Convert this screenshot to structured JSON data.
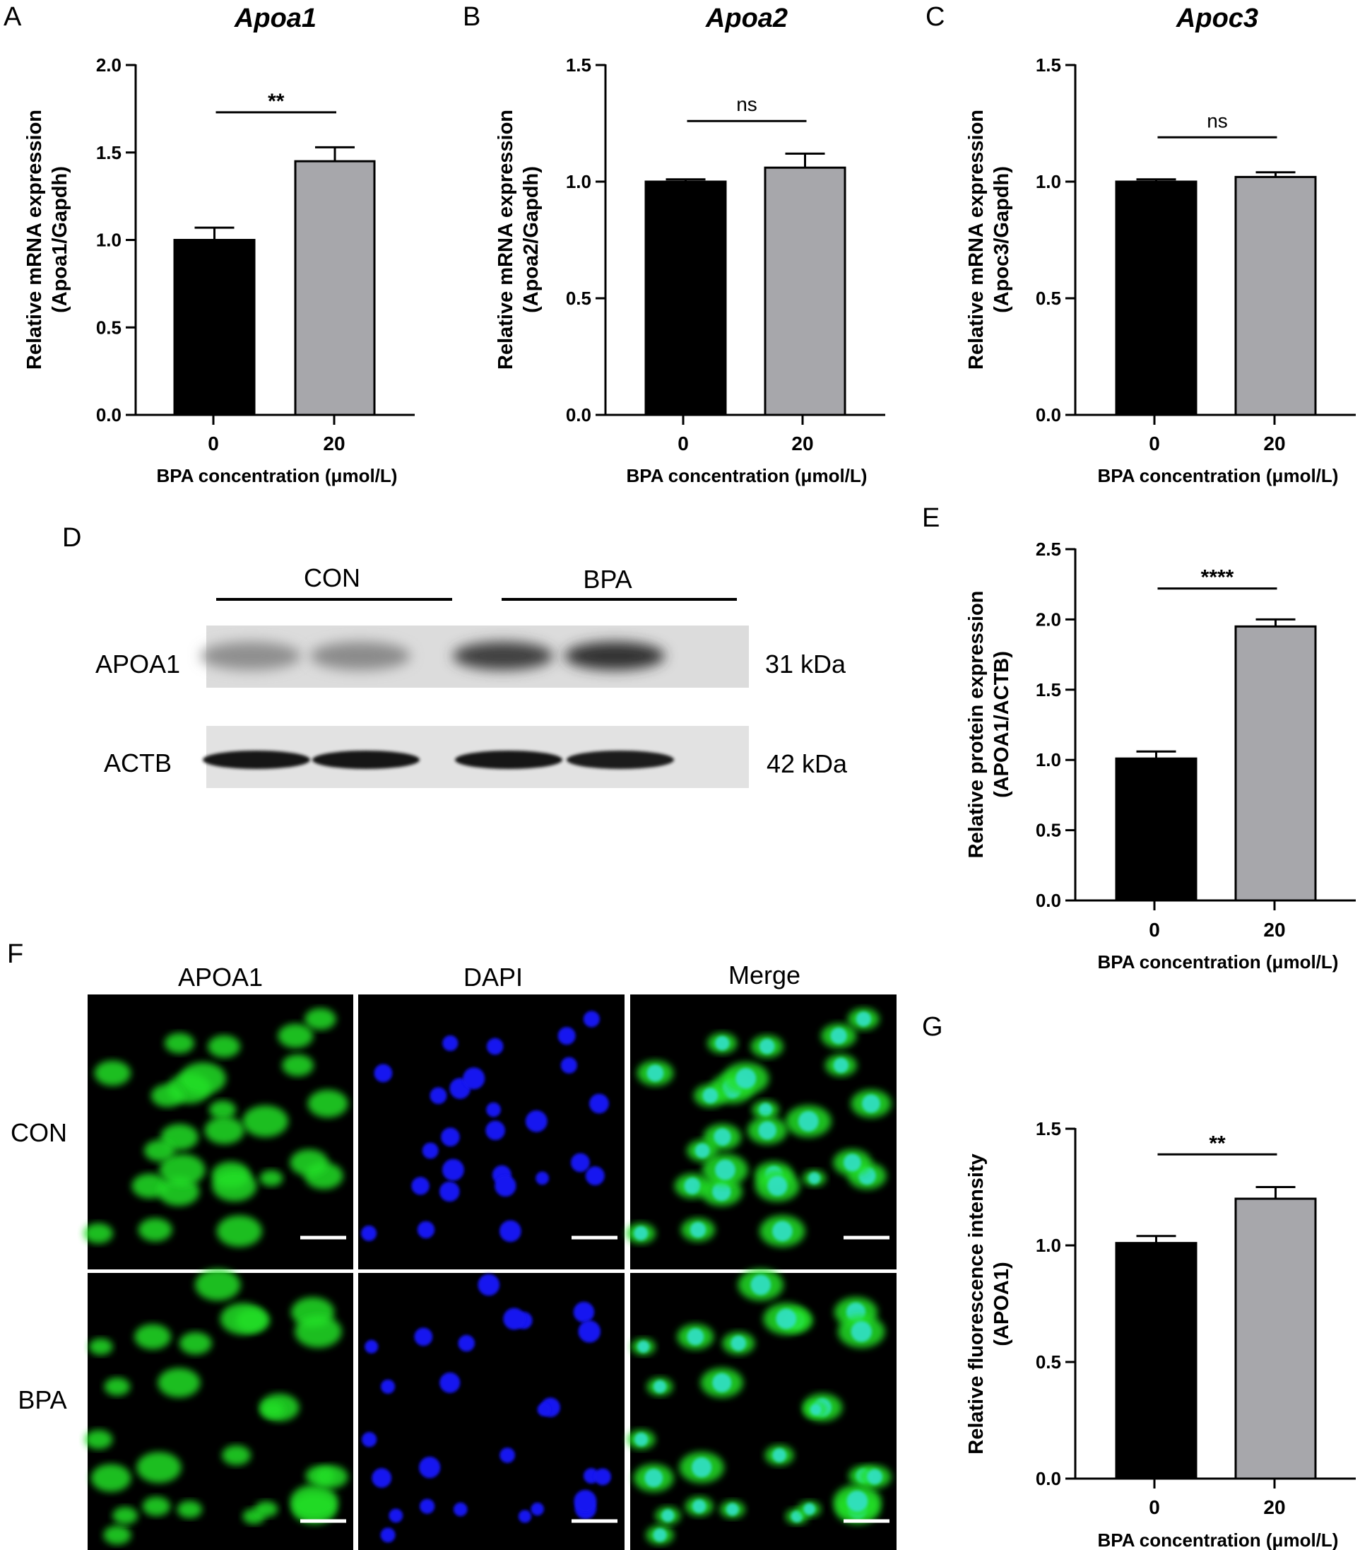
{
  "panel_letters": {
    "A": "A",
    "B": "B",
    "C": "C",
    "D": "D",
    "E": "E",
    "F": "F",
    "G": "G"
  },
  "colors": {
    "control_bar": "#000000",
    "bpa_bar": "#a7a7ab",
    "dapi": "#1414f0",
    "apoa1": "#22e028",
    "merge": "#33e0c8"
  },
  "chart_data": [
    {
      "panel": "A",
      "type": "bar",
      "title": "Apoa1",
      "ylabel_line1": "Relative mRNA expression",
      "ylabel_line2": "(Apoa1/Gapdh)",
      "xlabel": "BPA concentration (μmol/L)",
      "categories": [
        "0",
        "20"
      ],
      "values": [
        1.0,
        1.45
      ],
      "errors": [
        0.07,
        0.08
      ],
      "ylim": [
        0,
        2.0
      ],
      "yticks": [
        "0.0",
        "0.5",
        "1.0",
        "1.5",
        "2.0"
      ],
      "ytick_values": [
        0,
        0.5,
        1.0,
        1.5,
        2.0
      ],
      "significance": "**",
      "sig_level": 1.73
    },
    {
      "panel": "B",
      "type": "bar",
      "title": "Apoa2",
      "ylabel_line1": "Relative mRNA expression",
      "ylabel_line2": "(Apoa2/Gapdh)",
      "xlabel": "BPA concentration (μmol/L)",
      "categories": [
        "0",
        "20"
      ],
      "values": [
        1.0,
        1.06
      ],
      "errors": [
        0.01,
        0.06
      ],
      "ylim": [
        0,
        1.5
      ],
      "yticks": [
        "0.0",
        "0.5",
        "1.0",
        "1.5"
      ],
      "ytick_values": [
        0,
        0.5,
        1.0,
        1.5
      ],
      "significance": "ns",
      "sig_level": 1.26
    },
    {
      "panel": "C",
      "type": "bar",
      "title": "Apoc3",
      "ylabel_line1": "Relative mRNA expression",
      "ylabel_line2": "(Apoc3/Gapdh)",
      "xlabel": "BPA concentration (μmol/L)",
      "categories": [
        "0",
        "20"
      ],
      "values": [
        1.0,
        1.02
      ],
      "errors": [
        0.01,
        0.02
      ],
      "ylim": [
        0,
        1.5
      ],
      "yticks": [
        "0.0",
        "0.5",
        "1.0",
        "1.5"
      ],
      "ytick_values": [
        0,
        0.5,
        1.0,
        1.5
      ],
      "significance": "ns",
      "sig_level": 1.19
    },
    {
      "panel": "E",
      "type": "bar",
      "title": "",
      "ylabel_line1": "Relative protein expression",
      "ylabel_line2": "(APOA1/ACTB)",
      "xlabel": "BPA concentration (μmol/L)",
      "categories": [
        "0",
        "20"
      ],
      "values": [
        1.01,
        1.95
      ],
      "errors": [
        0.05,
        0.05
      ],
      "ylim": [
        0,
        2.5
      ],
      "yticks": [
        "0.0",
        "0.5",
        "1.0",
        "1.5",
        "2.0",
        "2.5"
      ],
      "ytick_values": [
        0,
        0.5,
        1.0,
        1.5,
        2.0,
        2.5
      ],
      "significance": "****",
      "sig_level": 2.22
    },
    {
      "panel": "G",
      "type": "bar",
      "title": "",
      "ylabel_line1": "Relative fluorescence intensity",
      "ylabel_line2": "(APOA1)",
      "xlabel": "BPA concentration (μmol/L)",
      "categories": [
        "0",
        "20"
      ],
      "values": [
        1.01,
        1.2
      ],
      "errors": [
        0.03,
        0.05
      ],
      "ylim": [
        0,
        1.5
      ],
      "yticks": [
        "0.0",
        "0.5",
        "1.0",
        "1.5"
      ],
      "ytick_values": [
        0,
        0.5,
        1.0,
        1.5
      ],
      "significance": "**",
      "sig_level": 1.39
    }
  ],
  "western_blot": {
    "groups": [
      "CON",
      "BPA"
    ],
    "rows": [
      {
        "protein": "APOA1",
        "size": "31 kDa",
        "intensities": [
          0.3,
          0.32,
          0.72,
          0.8
        ]
      },
      {
        "protein": "ACTB",
        "size": "42 kDa",
        "intensities": [
          0.95,
          0.92,
          0.93,
          0.9
        ]
      }
    ]
  },
  "immunofluorescence": {
    "columns": [
      "APOA1",
      "DAPI",
      "Merge"
    ],
    "rows": [
      "CON",
      "BPA"
    ]
  }
}
